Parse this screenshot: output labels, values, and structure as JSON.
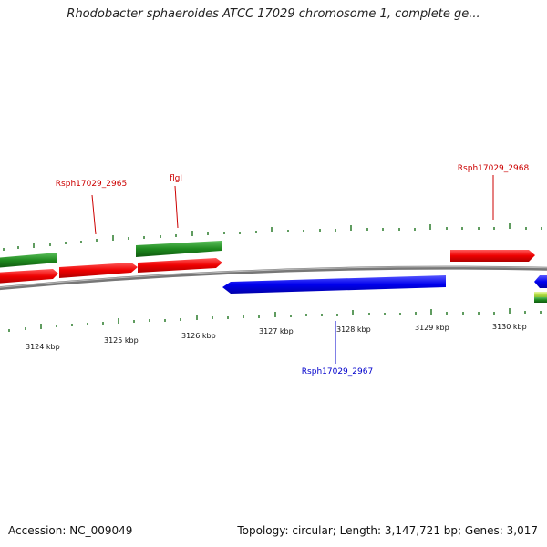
{
  "title": "Rhodobacter sphaeroides ATCC 17029 chromosome 1, complete ge...",
  "footer": {
    "accession": "Accession: NC_009049",
    "summary": "Topology: circular; Length: 3,147,721 bp; Genes: 3,017"
  },
  "colors": {
    "forward_gene": "#ee0000",
    "reverse_gene": "#0000ee",
    "feature_green": "#1f8a1f",
    "backbone": "#888888",
    "forward_label": "#cc0000",
    "reverse_label": "#0000cc",
    "tick": "#2a7a2a"
  },
  "ticks": [
    "3124 kbp",
    "3125 kbp",
    "3126 kbp",
    "3127 kbp",
    "3128 kbp",
    "3129 kbp",
    "3130 kbp"
  ],
  "gene_labels": [
    {
      "text": "Rsph17029_2965",
      "strand": "forward"
    },
    {
      "text": "flgI",
      "strand": "forward"
    },
    {
      "text": "Rsph17029_2968",
      "strand": "forward"
    },
    {
      "text": "Rsph17029_2967",
      "strand": "reverse"
    }
  ]
}
